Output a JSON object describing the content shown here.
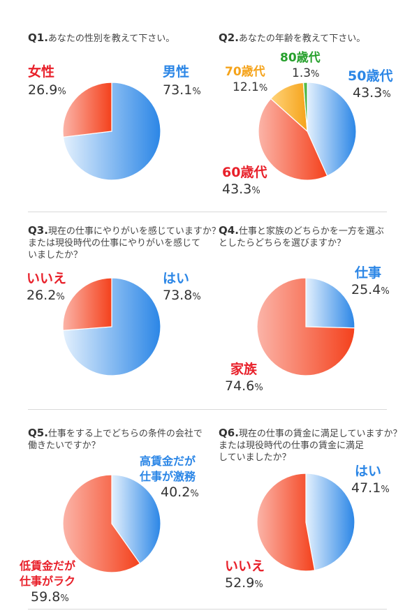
{
  "colors": {
    "red": "#e8202a",
    "blue": "#2b86e6",
    "orange": "#f5a31a",
    "green": "#26a02c"
  },
  "questions": [
    {
      "number": "Q1.",
      "text": "あなたの性別を教えて下さい。",
      "labels": [
        {
          "text": "男性",
          "value": "73.1",
          "unit": "%",
          "color": "blue"
        },
        {
          "text": "女性",
          "value": "26.9",
          "unit": "%",
          "color": "red"
        }
      ]
    },
    {
      "number": "Q2.",
      "text": "あなたの年齢を教えて下さい。",
      "labels": [
        {
          "text": "50歳代",
          "value": "43.3",
          "unit": "%",
          "color": "blue"
        },
        {
          "text": "60歳代",
          "value": "43.3",
          "unit": "%",
          "color": "red"
        },
        {
          "text": "70歳代",
          "value": "12.1",
          "unit": "%",
          "color": "orange"
        },
        {
          "text": "80歳代",
          "value": "1.3",
          "unit": "%",
          "color": "green"
        }
      ]
    },
    {
      "number": "Q3.",
      "text": "現在の仕事にやりがいを感じていますか？\nまたは現役時代の仕事にやりがいを感じて\nいましたか？",
      "labels": [
        {
          "text": "はい",
          "value": "73.8",
          "unit": "%",
          "color": "blue"
        },
        {
          "text": "いいえ",
          "value": "26.2",
          "unit": "%",
          "color": "red"
        }
      ]
    },
    {
      "number": "Q4.",
      "text": "仕事と家族のどちらかを一方を選ぶ\nとしたらどちらを選びますか？",
      "labels": [
        {
          "text": "仕事",
          "value": "25.4",
          "unit": "%",
          "color": "blue"
        },
        {
          "text": "家族",
          "value": "74.6",
          "unit": "%",
          "color": "red"
        }
      ]
    },
    {
      "number": "Q5.",
      "text": "仕事をする上でどちらの条件の会社で\n働きたいですか？",
      "labels": [
        {
          "text": "高賃金だが\n仕事が激務",
          "value": "40.2",
          "unit": "%",
          "color": "blue"
        },
        {
          "text": "低賃金だが\n仕事がラク",
          "value": "59.8",
          "unit": "%",
          "color": "red"
        }
      ]
    },
    {
      "number": "Q6.",
      "text": "現在の仕事の賃金に満足していますか？\nまたは現役時代の仕事の賃金に満足\nしていましたか？",
      "labels": [
        {
          "text": "はい",
          "value": "47.1",
          "unit": "%",
          "color": "blue"
        },
        {
          "text": "いいえ",
          "value": "52.9",
          "unit": "%",
          "color": "red"
        }
      ]
    }
  ],
  "chart_data": [
    {
      "type": "pie",
      "categories": [
        "男性",
        "女性"
      ],
      "values": [
        73.1,
        26.9
      ],
      "start": "12 o'clock",
      "direction": "clockwise"
    },
    {
      "type": "pie",
      "categories": [
        "50歳代",
        "60歳代",
        "70歳代",
        "80歳代"
      ],
      "values": [
        43.3,
        43.3,
        12.1,
        1.3
      ],
      "start": "12 o'clock",
      "direction": "clockwise"
    },
    {
      "type": "pie",
      "categories": [
        "はい",
        "いいえ"
      ],
      "values": [
        73.8,
        26.2
      ],
      "start": "12 o'clock",
      "direction": "clockwise"
    },
    {
      "type": "pie",
      "categories": [
        "仕事",
        "家族"
      ],
      "values": [
        25.4,
        74.6
      ],
      "start": "12 o'clock",
      "direction": "clockwise"
    },
    {
      "type": "pie",
      "categories": [
        "高賃金だが仕事が激務",
        "低賃金だが仕事がラク"
      ],
      "values": [
        40.2,
        59.8
      ],
      "start": "12 o'clock",
      "direction": "clockwise"
    },
    {
      "type": "pie",
      "categories": [
        "はい",
        "いいえ"
      ],
      "values": [
        47.1,
        52.9
      ],
      "start": "12 o'clock",
      "direction": "clockwise"
    }
  ]
}
